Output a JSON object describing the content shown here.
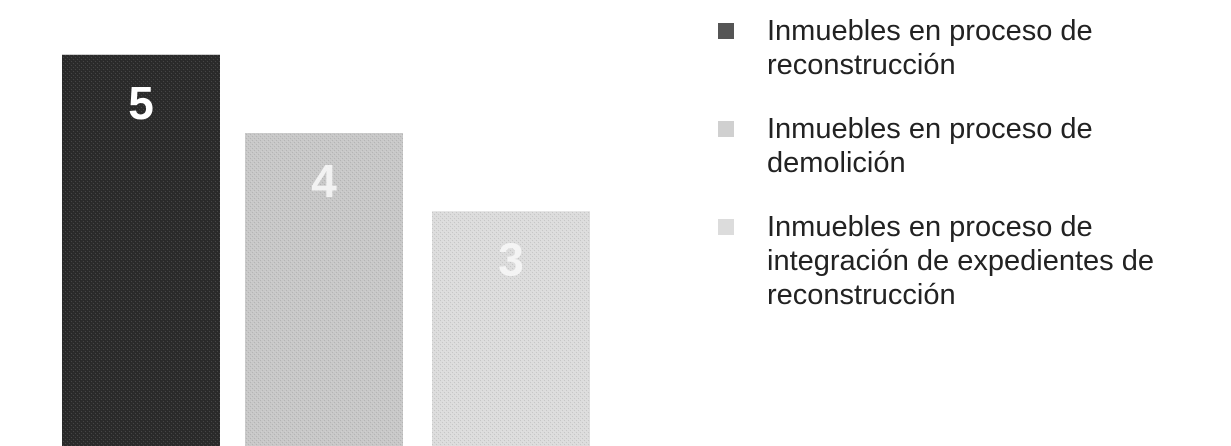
{
  "chart_data": {
    "type": "bar",
    "categories": [
      "Inmuebles en proceso de reconstrucción",
      "Inmuebles en proceso de demolición",
      "Inmuebles en proceso de integración de expedientes de reconstrucción"
    ],
    "values": [
      5,
      4,
      3
    ],
    "value_labels": [
      "5",
      "4",
      "3"
    ],
    "ylim": [
      0,
      5.7
    ],
    "grid": false,
    "legend_position": "right",
    "colors": [
      "#2b2b2b",
      "#c8c8c8",
      "#dcdcdc"
    ],
    "label_colors": [
      "#ffffff",
      "#f2f2f2",
      "#f4f4f4"
    ]
  },
  "legend": {
    "items": [
      {
        "label": "Inmuebles en proceso de reconstrucción",
        "color": "#555555"
      },
      {
        "label": "Inmuebles en proceso de demolición",
        "color": "#d0d0d0"
      },
      {
        "label": "Inmuebles en proceso de integración de expedientes de reconstrucción",
        "color": "#dcdcdc"
      }
    ]
  }
}
